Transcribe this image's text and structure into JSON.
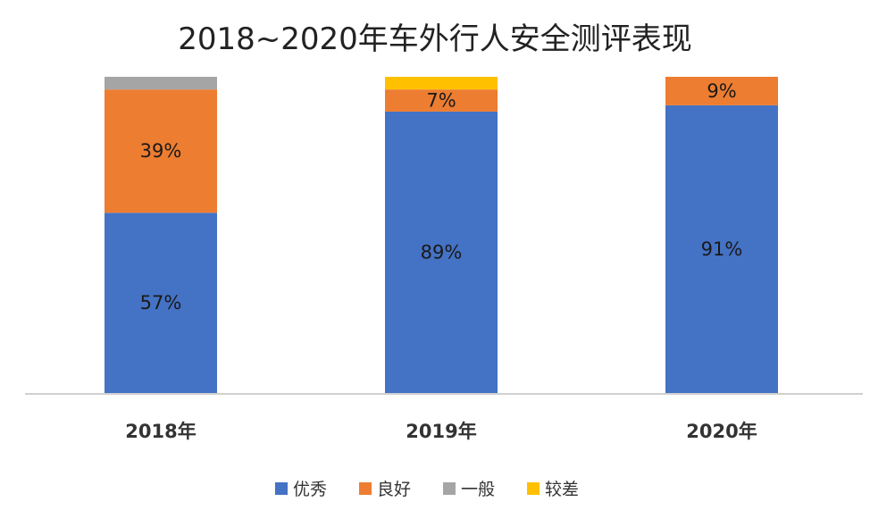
{
  "chart_data": {
    "type": "bar",
    "stacked": true,
    "title": "2018~2020年车外行人安全测评表现",
    "categories": [
      "2018年",
      "2019年",
      "2020年"
    ],
    "ylim": [
      0,
      100
    ],
    "grid": false,
    "legend_position": "bottom",
    "series": [
      {
        "name": "优秀",
        "color": "#4472C4",
        "values": [
          57,
          89,
          91
        ],
        "labels": [
          "57%",
          "89%",
          "91%"
        ]
      },
      {
        "name": "良好",
        "color": "#ED7D31",
        "values": [
          39,
          7,
          9
        ],
        "labels": [
          "39%",
          "7%",
          "9%"
        ]
      },
      {
        "name": "一般",
        "color": "#A5A5A5",
        "values": [
          4,
          0,
          0
        ],
        "labels": [
          "",
          "",
          ""
        ]
      },
      {
        "name": "较差",
        "color": "#FFC000",
        "values": [
          0,
          4,
          0
        ],
        "labels": [
          "",
          "",
          ""
        ]
      }
    ]
  }
}
